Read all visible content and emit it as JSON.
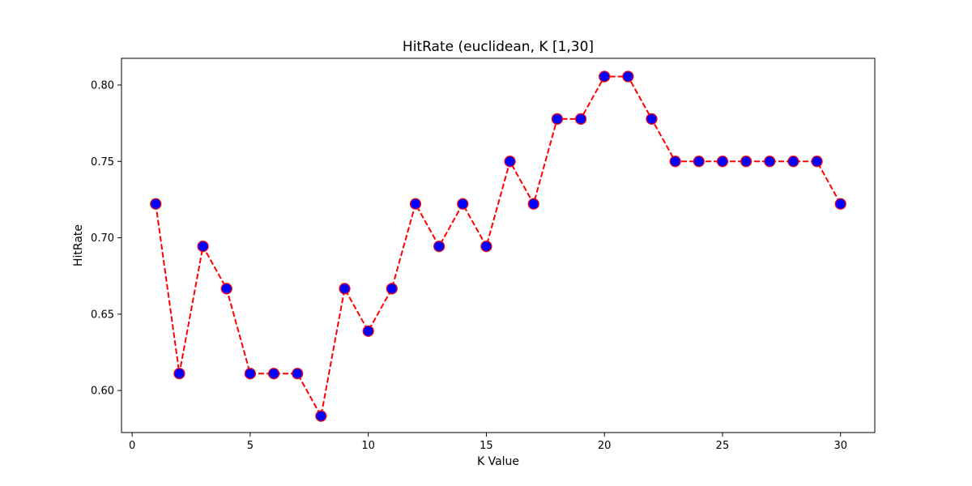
{
  "chart_data": {
    "type": "line",
    "title": "HitRate (euclidean, K [1,30]",
    "xlabel": "K Value",
    "ylabel": "HitRate",
    "xlim": [
      -0.45,
      31.45
    ],
    "ylim": [
      0.5725,
      0.8175
    ],
    "grid": false,
    "legend": "none",
    "x_ticks": [
      0,
      5,
      10,
      15,
      20,
      25,
      30
    ],
    "x_tick_labels": [
      "0",
      "5",
      "10",
      "15",
      "20",
      "25",
      "30"
    ],
    "y_ticks": [
      0.6,
      0.65,
      0.7,
      0.75,
      0.8
    ],
    "y_tick_labels": [
      "0.60",
      "0.65",
      "0.70",
      "0.75",
      "0.80"
    ],
    "series": [
      {
        "line_color": "#ff0000",
        "line_style": "dashed",
        "marker": "circle",
        "marker_face_color": "#0000ff",
        "marker_edge_color": "#ff0000",
        "x": [
          1,
          2,
          3,
          4,
          5,
          6,
          7,
          8,
          9,
          10,
          11,
          12,
          13,
          14,
          15,
          16,
          17,
          18,
          19,
          20,
          21,
          22,
          23,
          24,
          25,
          26,
          27,
          28,
          29,
          30
        ],
        "y": [
          0.7222,
          0.6111,
          0.6944,
          0.6667,
          0.6111,
          0.6111,
          0.6111,
          0.5833,
          0.6667,
          0.6389,
          0.6667,
          0.7222,
          0.6944,
          0.7222,
          0.6944,
          0.75,
          0.7222,
          0.7778,
          0.7778,
          0.8056,
          0.8056,
          0.7778,
          0.75,
          0.75,
          0.75,
          0.75,
          0.75,
          0.75,
          0.75,
          0.7222
        ]
      }
    ]
  }
}
